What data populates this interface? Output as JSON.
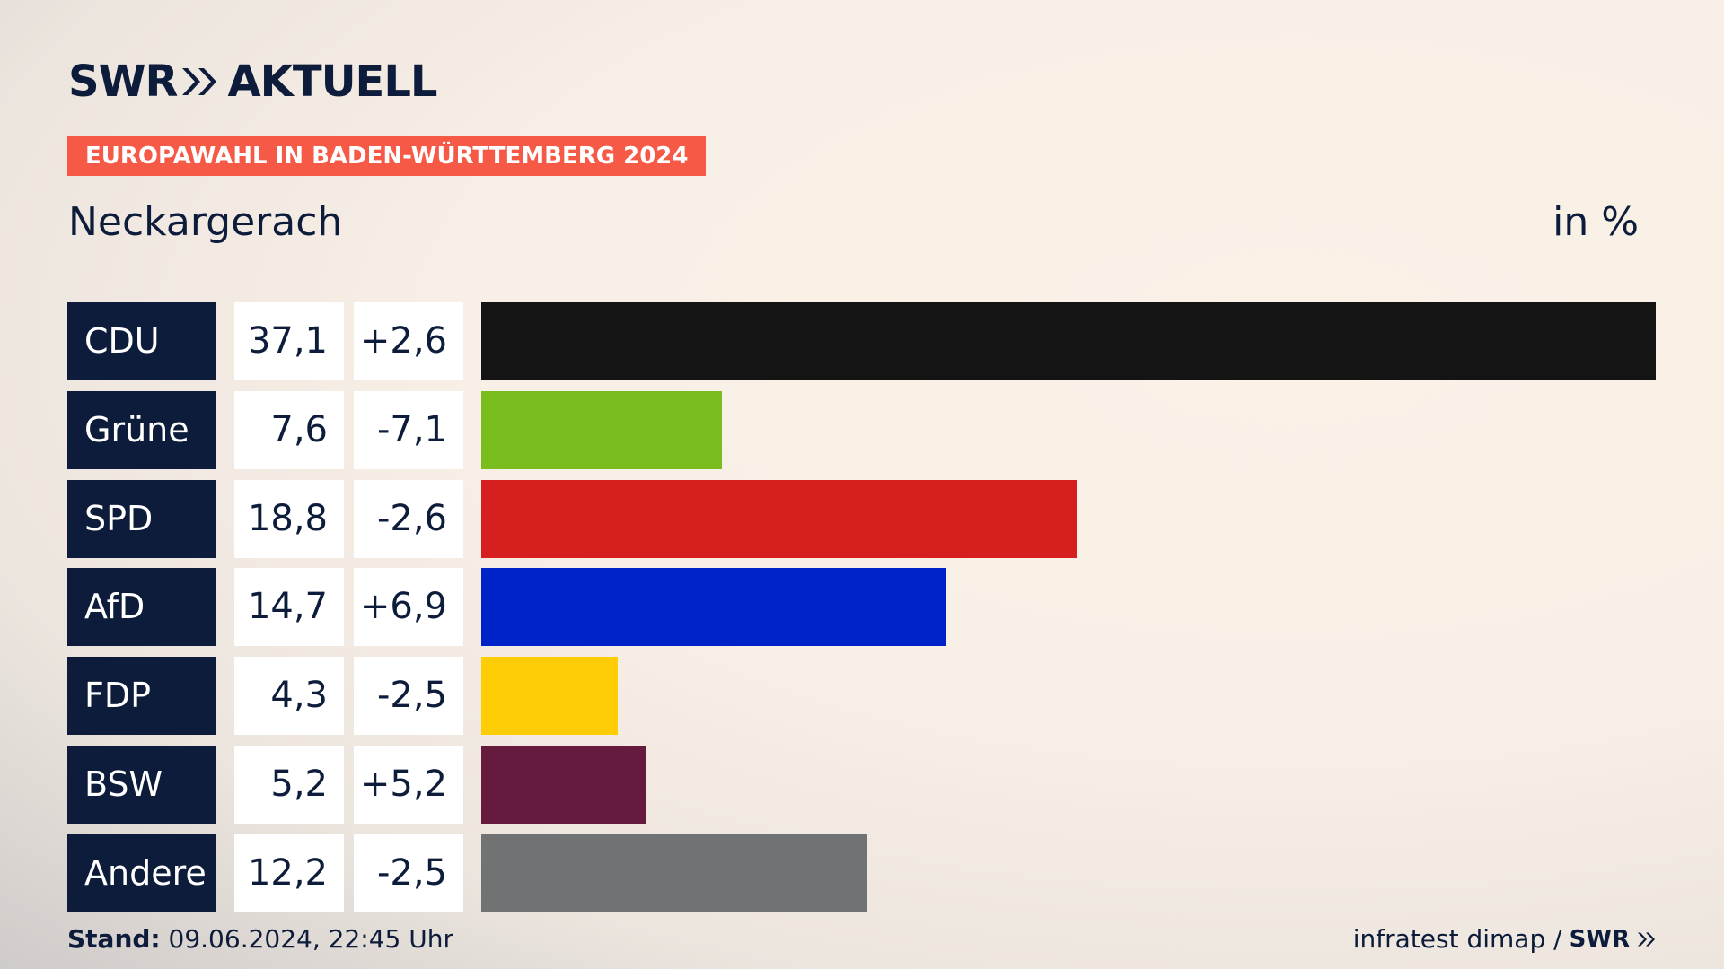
{
  "header": {
    "brand": "SWR",
    "product": "AKTUELL"
  },
  "chart_data": {
    "type": "bar",
    "orientation": "horizontal",
    "title": "EUROPAWAHL IN BADEN-WÜRTTEMBERG 2024",
    "subtitle": "Neckargerach",
    "unit": "in %",
    "categories": [
      "CDU",
      "Grüne",
      "SPD",
      "AfD",
      "FDP",
      "BSW",
      "Andere"
    ],
    "values": [
      37.1,
      7.6,
      18.8,
      14.7,
      4.3,
      5.2,
      12.2
    ],
    "value_labels": [
      "37,1",
      "7,6",
      "18,8",
      "14,7",
      "4,3",
      "5,2",
      "12,2"
    ],
    "changes": [
      2.6,
      -7.1,
      -2.6,
      6.9,
      -2.5,
      5.2,
      -2.5
    ],
    "change_labels": [
      "+2,6",
      "-7,1",
      "-2,6",
      "+6,9",
      "-2,5",
      "+5,2",
      "-2,5"
    ],
    "colors": [
      "#141414",
      "#7abd1e",
      "#d61f1f",
      "#0022c9",
      "#ffcd05",
      "#661a3e",
      "#717273"
    ]
  },
  "footer": {
    "stand_label": "Stand:",
    "stand_date": "09.06.2024, 22:45 Uhr",
    "source": "infratest dimap /",
    "brand": "SWR"
  }
}
